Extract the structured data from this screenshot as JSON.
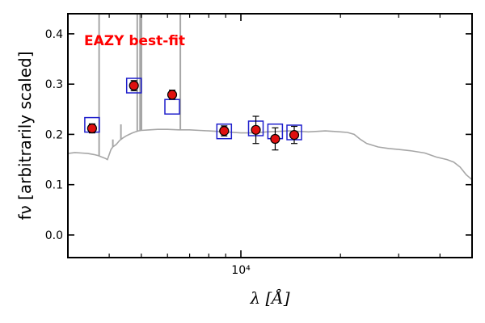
{
  "chart_data": {
    "type": "scatter",
    "title": "",
    "annotation": {
      "text": "EAZY best-fit",
      "color": "#ff0000"
    },
    "xlabel": "λ [Å]",
    "ylabel": "fν [arbitrarily scaled]",
    "xscale": "log",
    "xlim": [
      3000,
      50000
    ],
    "ylim": [
      -0.045,
      0.44
    ],
    "yticks": [
      0.0,
      0.1,
      0.2,
      0.3,
      0.4
    ],
    "ytick_labels": [
      "0.0",
      "0.1",
      "0.2",
      "0.3",
      "0.4"
    ],
    "xtick_major": [
      10000
    ],
    "xtick_labels": [
      "10⁴"
    ],
    "xtick_minor": [
      4000,
      5000,
      6000,
      7000,
      8000,
      9000,
      20000,
      30000,
      40000
    ],
    "grid": false,
    "legend": "none",
    "colors": {
      "sed_line": "#a6a6a6",
      "model_box": "#1f1fcc",
      "obs_fill": "#e01010",
      "obs_edge": "#000000"
    },
    "series": [
      {
        "kind": "line",
        "x": [
          3000,
          3150,
          3300,
          3450,
          3600,
          3700,
          3800,
          3900,
          3950,
          4000,
          4050,
          4100,
          4200,
          4300,
          4400,
          4500,
          4600,
          4700,
          4800,
          4900,
          5000,
          5300,
          5600,
          6000,
          6500,
          7000,
          7500,
          8000,
          9000,
          10000,
          11000,
          12000,
          13000,
          14000,
          15000,
          16000,
          17000,
          18000,
          19000,
          20000,
          21000,
          22000,
          23000,
          24000,
          26000,
          28000,
          30000,
          33000,
          36000,
          39000,
          42000,
          44000,
          46000,
          48000,
          50000
        ],
        "y": [
          0.162,
          0.164,
          0.163,
          0.162,
          0.16,
          0.158,
          0.155,
          0.152,
          0.15,
          0.16,
          0.17,
          0.175,
          0.18,
          0.188,
          0.193,
          0.197,
          0.2,
          0.203,
          0.205,
          0.207,
          0.208,
          0.209,
          0.21,
          0.21,
          0.209,
          0.209,
          0.208,
          0.207,
          0.205,
          0.203,
          0.203,
          0.205,
          0.206,
          0.207,
          0.206,
          0.205,
          0.206,
          0.207,
          0.206,
          0.205,
          0.204,
          0.2,
          0.19,
          0.182,
          0.175,
          0.172,
          0.17,
          0.167,
          0.163,
          0.155,
          0.15,
          0.145,
          0.135,
          0.12,
          0.11
        ]
      },
      {
        "kind": "emission_lines",
        "x": [
          3727,
          4102,
          4340,
          4861,
          4959,
          5007,
          6563
        ],
        "peak": [
          0.44,
          0.19,
          0.22,
          0.44,
          0.44,
          0.44,
          0.44
        ]
      },
      {
        "kind": "model_photometry",
        "marker": "open-square",
        "x": [
          3550,
          4750,
          6200,
          8900,
          11100,
          12700,
          14500
        ],
        "y": [
          0.219,
          0.297,
          0.255,
          0.206,
          0.212,
          0.206,
          0.204
        ]
      },
      {
        "kind": "observed_photometry",
        "marker": "filled-circle",
        "x": [
          3550,
          4750,
          6200,
          8900,
          11100,
          12700,
          14500
        ],
        "y": [
          0.212,
          0.297,
          0.279,
          0.207,
          0.209,
          0.191,
          0.199
        ],
        "yerr": [
          0.009,
          0.01,
          0.009,
          0.01,
          0.027,
          0.022,
          0.017
        ]
      }
    ]
  }
}
